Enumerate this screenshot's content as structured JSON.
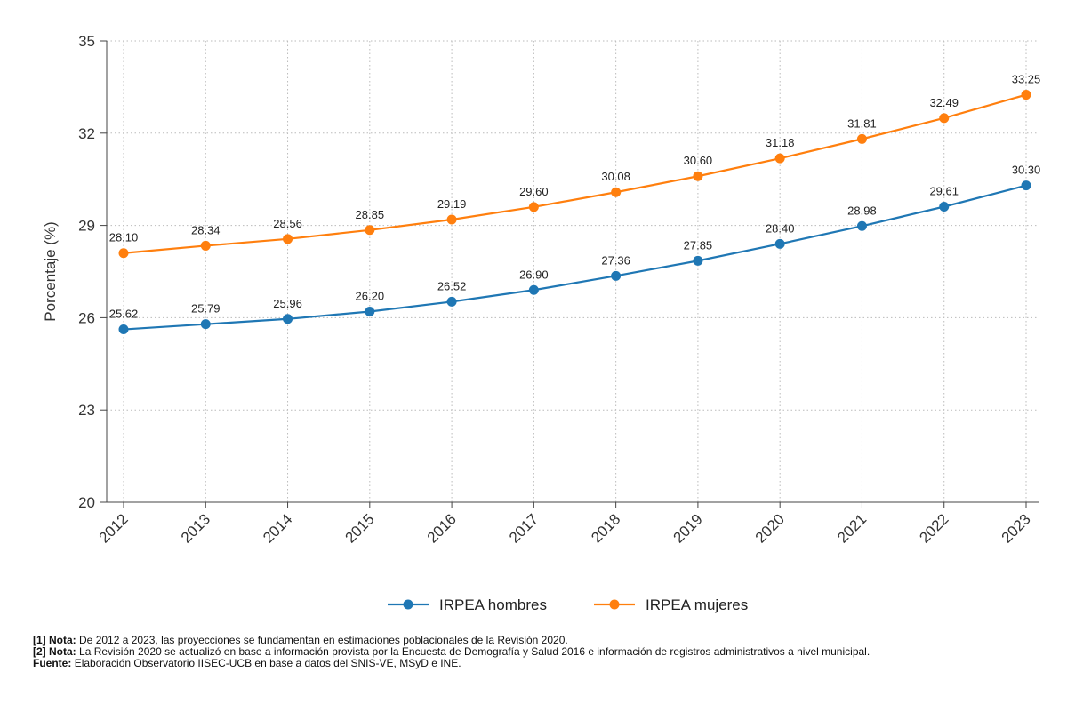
{
  "chart_data": {
    "type": "line",
    "title": "",
    "xlabel": "",
    "ylabel": "Porcentaje (%)",
    "categories": [
      "2012",
      "2013",
      "2014",
      "2015",
      "2016",
      "2017",
      "2018",
      "2019",
      "2020",
      "2021",
      "2022",
      "2023"
    ],
    "ylim": [
      20,
      35
    ],
    "yticks": [
      20,
      23,
      26,
      29,
      32,
      35
    ],
    "ytick_labels": [
      "20",
      "23",
      "26",
      "29",
      "32",
      "35"
    ],
    "grid": true,
    "legend_position": "bottom-center",
    "series": [
      {
        "name": "IRPEA hombres",
        "color": "#1f77b4",
        "values": [
          25.62,
          25.79,
          25.96,
          26.2,
          26.52,
          26.9,
          27.36,
          27.85,
          28.4,
          28.98,
          29.61,
          30.3
        ],
        "labels": [
          "25.62",
          "25.79",
          "25.96",
          "26.20",
          "26.52",
          "26.90",
          "27.36",
          "27.85",
          "28.40",
          "28.98",
          "29.61",
          "30.30"
        ]
      },
      {
        "name": "IRPEA mujeres",
        "color": "#ff7f0e",
        "values": [
          28.1,
          28.34,
          28.56,
          28.85,
          29.19,
          29.6,
          30.08,
          30.6,
          31.18,
          31.81,
          32.49,
          33.25
        ],
        "labels": [
          "28.10",
          "28.34",
          "28.56",
          "28.85",
          "29.19",
          "29.60",
          "30.08",
          "30.60",
          "31.18",
          "31.81",
          "32.49",
          "33.25"
        ]
      }
    ]
  },
  "notes": [
    {
      "key": "[1] Nota:",
      "text": "De 2012 a 2023, las proyecciones se fundamentan en estimaciones poblacionales de la Revisión 2020."
    },
    {
      "key": "[2] Nota:",
      "text": "La Revisión 2020 se actualizó en base a información provista por la Encuesta de Demografía y Salud 2016 e información de registros administrativos a nivel municipal."
    },
    {
      "key": "Fuente:",
      "text": "Elaboración Observatorio IISEC-UCB en base a datos del SNIS-VE, MSyD e INE."
    }
  ]
}
